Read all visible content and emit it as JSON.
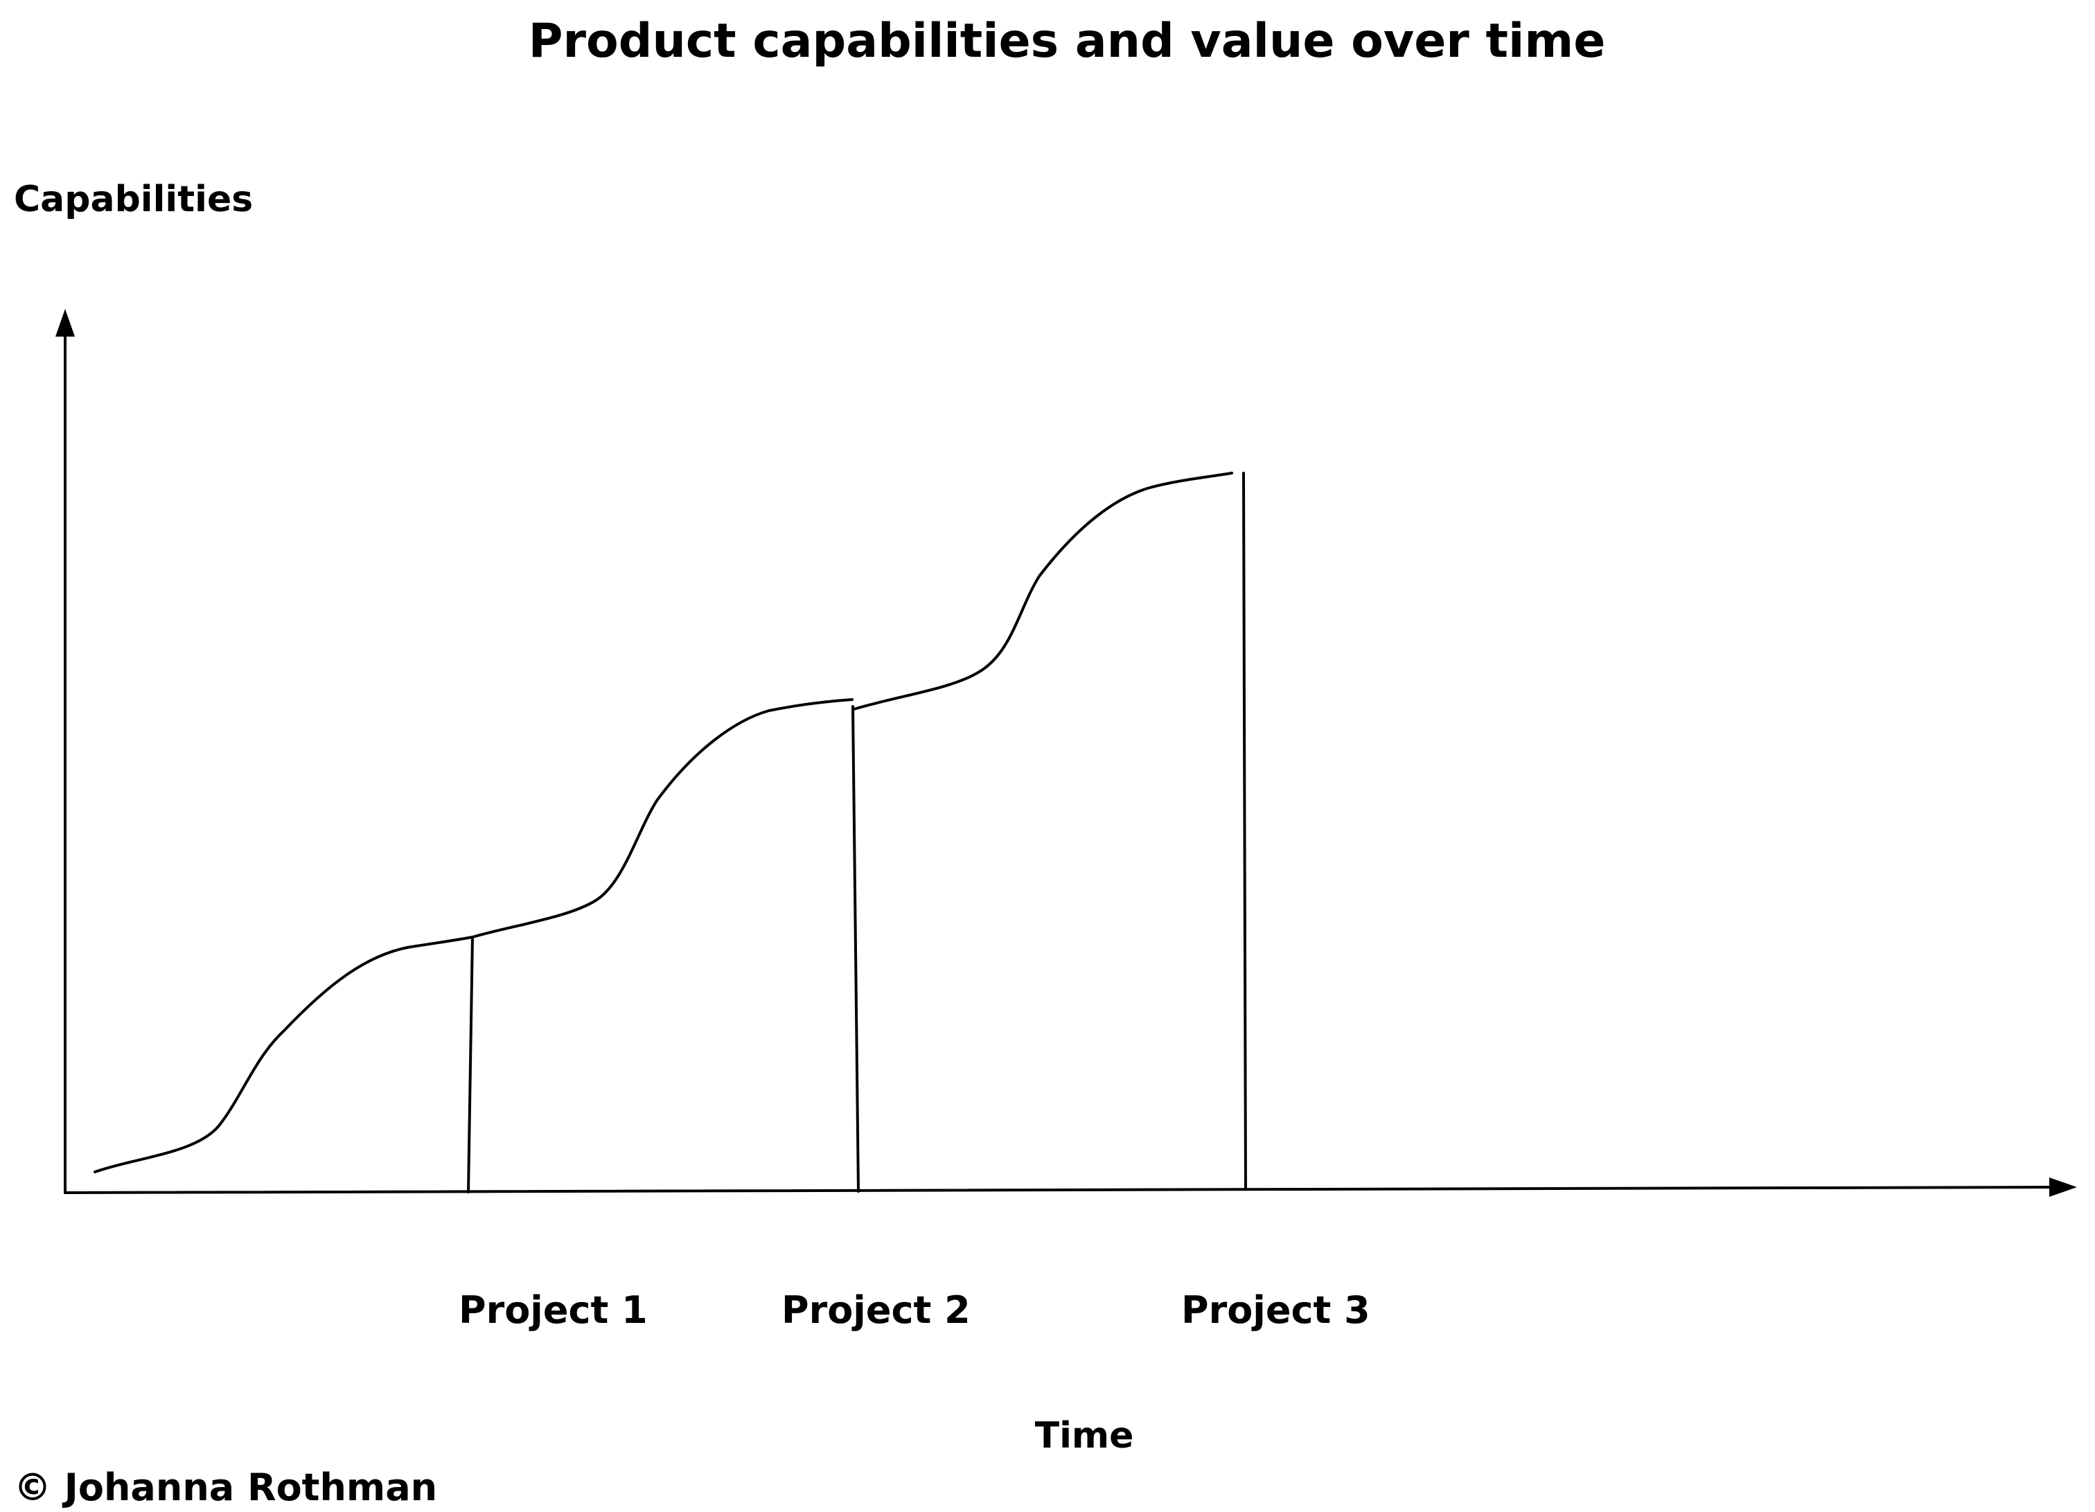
{
  "title": "Product capabilities and value over time",
  "y_axis_label": "Capabilities",
  "x_axis_label": "Time",
  "projects": [
    {
      "label": "Project 1"
    },
    {
      "label": "Project 2"
    },
    {
      "label": "Project 3"
    }
  ],
  "copyright": "© Johanna Rothman",
  "stroke_color": "#000000",
  "background_color": "#ffffff"
}
